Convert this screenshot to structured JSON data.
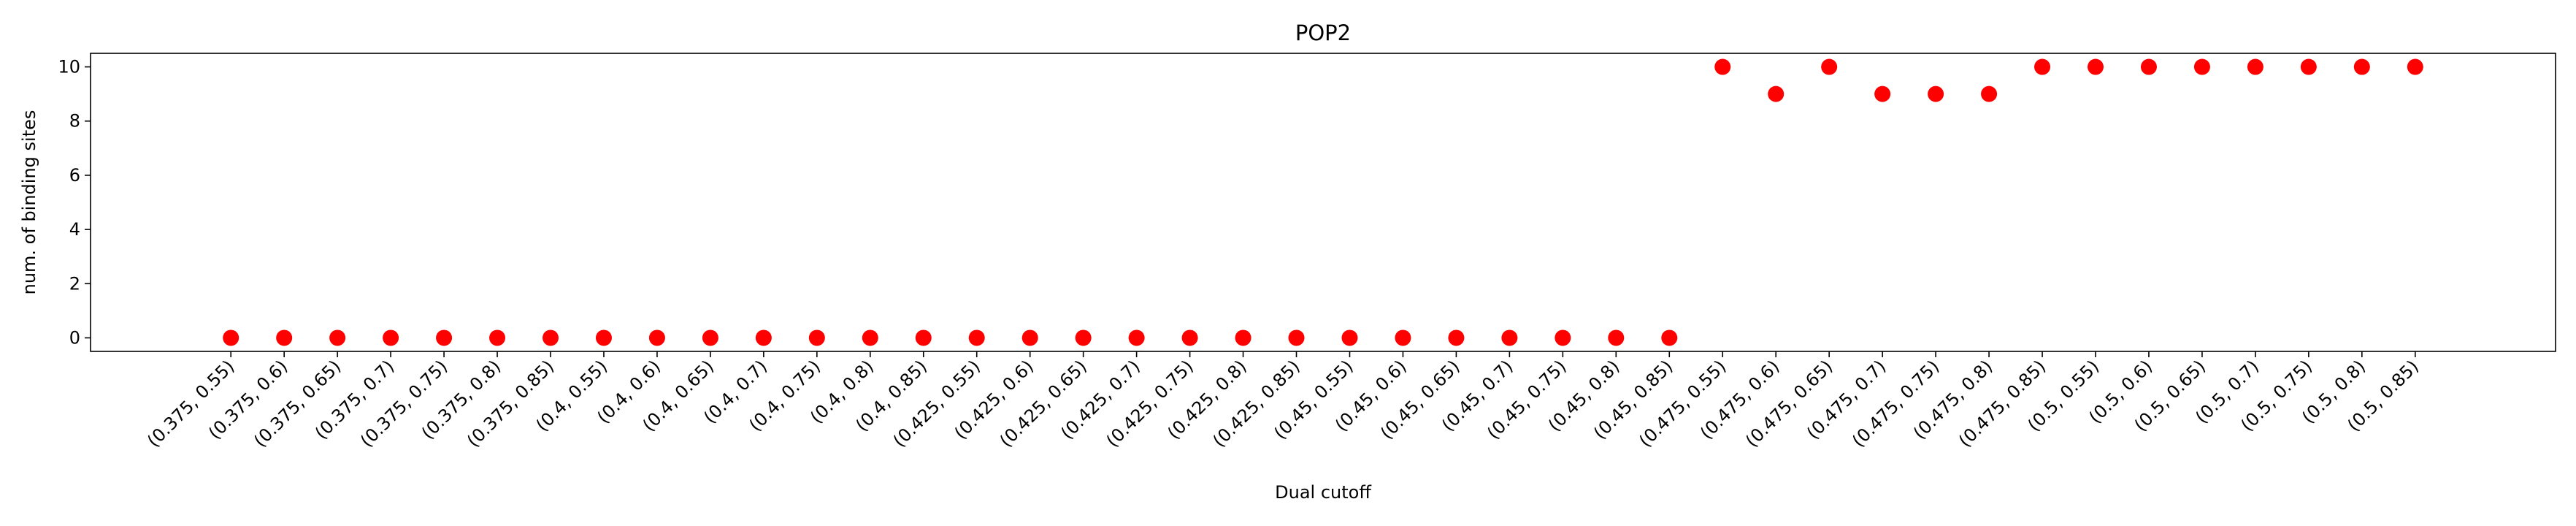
{
  "chart_data": {
    "type": "scatter",
    "title": "POP2",
    "xlabel": "Dual cutoff",
    "ylabel": "num. of binding sites",
    "ylim": [
      -0.5,
      10.5
    ],
    "yticks": [
      0,
      2,
      4,
      6,
      8,
      10
    ],
    "grid": false,
    "marker_color": "#ff0000",
    "categories": [
      "(0.375, 0.55)",
      "(0.375, 0.6)",
      "(0.375, 0.65)",
      "(0.375, 0.7)",
      "(0.375, 0.75)",
      "(0.375, 0.8)",
      "(0.375, 0.85)",
      "(0.4, 0.55)",
      "(0.4, 0.6)",
      "(0.4, 0.65)",
      "(0.4, 0.7)",
      "(0.4, 0.75)",
      "(0.4, 0.8)",
      "(0.4, 0.85)",
      "(0.425, 0.55)",
      "(0.425, 0.6)",
      "(0.425, 0.65)",
      "(0.425, 0.7)",
      "(0.425, 0.75)",
      "(0.425, 0.8)",
      "(0.425, 0.85)",
      "(0.45, 0.55)",
      "(0.45, 0.6)",
      "(0.45, 0.65)",
      "(0.45, 0.7)",
      "(0.45, 0.75)",
      "(0.45, 0.8)",
      "(0.45, 0.85)",
      "(0.475, 0.55)",
      "(0.475, 0.6)",
      "(0.475, 0.65)",
      "(0.475, 0.7)",
      "(0.475, 0.75)",
      "(0.475, 0.8)",
      "(0.475, 0.85)",
      "(0.5, 0.55)",
      "(0.5, 0.6)",
      "(0.5, 0.65)",
      "(0.5, 0.7)",
      "(0.5, 0.75)",
      "(0.5, 0.8)",
      "(0.5, 0.85)"
    ],
    "values": [
      0,
      0,
      0,
      0,
      0,
      0,
      0,
      0,
      0,
      0,
      0,
      0,
      0,
      0,
      0,
      0,
      0,
      0,
      0,
      0,
      0,
      0,
      0,
      0,
      0,
      0,
      0,
      0,
      10,
      9,
      10,
      9,
      9,
      9,
      10,
      10,
      10,
      10,
      10,
      10,
      10,
      10
    ]
  }
}
